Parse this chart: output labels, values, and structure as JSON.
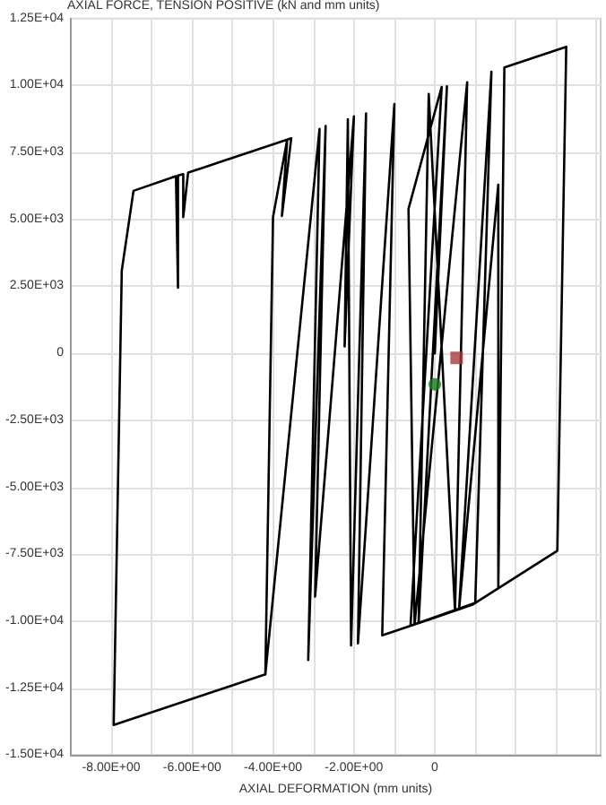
{
  "chart_data": {
    "type": "line",
    "ylabel": "AXIAL FORCE, TENSION POSITIVE (kN and mm units)",
    "xlabel": "AXIAL DEFORMATION (mm units)",
    "xlim": [
      -9,
      4.1
    ],
    "ylim": [
      -15000,
      12500
    ],
    "xticks": [
      {
        "value": -8,
        "label": "-8.00E+00"
      },
      {
        "value": -7,
        "label": null
      },
      {
        "value": -6,
        "label": "-6.00E+00"
      },
      {
        "value": -5,
        "label": null
      },
      {
        "value": -4,
        "label": "-4.00E+00"
      },
      {
        "value": -3,
        "label": null
      },
      {
        "value": -2,
        "label": "-2.00E+00"
      },
      {
        "value": -1,
        "label": null
      },
      0,
      {
        "value": 1,
        "label": null
      },
      {
        "value": 2,
        "label": null
      },
      {
        "value": 3,
        "label": null
      },
      {
        "value": 4,
        "label": null
      }
    ],
    "yticks": [
      {
        "value": -15000,
        "label": "-1.50E+04"
      },
      {
        "value": -12500,
        "label": "-1.25E+04"
      },
      {
        "value": -10000,
        "label": "-1.00E+04"
      },
      {
        "value": -7500,
        "label": "-7.50E+03"
      },
      {
        "value": -5000,
        "label": "-5.00E+03"
      },
      {
        "value": -2500,
        "label": "-2.50E+03"
      },
      0,
      {
        "value": 2500,
        "label": "2.50E+03"
      },
      {
        "value": 5000,
        "label": "5.00E+03"
      },
      {
        "value": 7500,
        "label": "7.50E+03"
      },
      {
        "value": 10000,
        "label": "1.00E+04"
      },
      {
        "value": 12500,
        "label": "1.25E+04"
      }
    ],
    "grid": true,
    "line_style": "solid",
    "series": [
      {
        "marker": "none",
        "color": "#000000",
        "x": [
          0,
          0.3,
          -0.4,
          -0.15,
          0.5,
          0.8,
          -0.5,
          -0.65,
          0.17,
          -0.6,
          1.0,
          1.4,
          0.6,
          1.57,
          1.57,
          1.72,
          3.25,
          3.03,
          0.93,
          0,
          -1.3,
          -1.0,
          -1.9,
          -1.7,
          -2.07,
          -2.15,
          -2.23,
          -2.0,
          -2.96,
          -2.7,
          -3.13,
          -2.85,
          -4.19,
          -4.0,
          -3.65,
          -3.78,
          -3.55,
          -5.74,
          -6.1,
          -6.22,
          -6.22,
          -6.35,
          -6.35,
          -6.4,
          -7.45,
          -7.74,
          -7.94,
          -4.19
        ],
        "values": [
          0,
          9970,
          -10070,
          9690,
          -9610,
          10120,
          -10120,
          5400,
          9950,
          -10170,
          -9320,
          10520,
          -9560,
          6300,
          -8770,
          10680,
          11450,
          -7370,
          -9390,
          -9870,
          -10530,
          9310,
          -10830,
          8960,
          -10910,
          8740,
          260,
          8850,
          -9080,
          8490,
          -11450,
          8380,
          -11990,
          5090,
          7980,
          5130,
          8030,
          6930,
          6750,
          5090,
          6690,
          6640,
          2450,
          6620,
          6070,
          3090,
          -13880,
          -11990
        ]
      },
      {
        "type": "scatter",
        "marker": "circle",
        "color": "#1e7a1e",
        "x": [
          0
        ],
        "values": [
          -1160
        ]
      },
      {
        "type": "scatter",
        "marker": "square",
        "color": "#a83838",
        "x": [
          0.54
        ],
        "values": [
          -170
        ]
      }
    ]
  }
}
